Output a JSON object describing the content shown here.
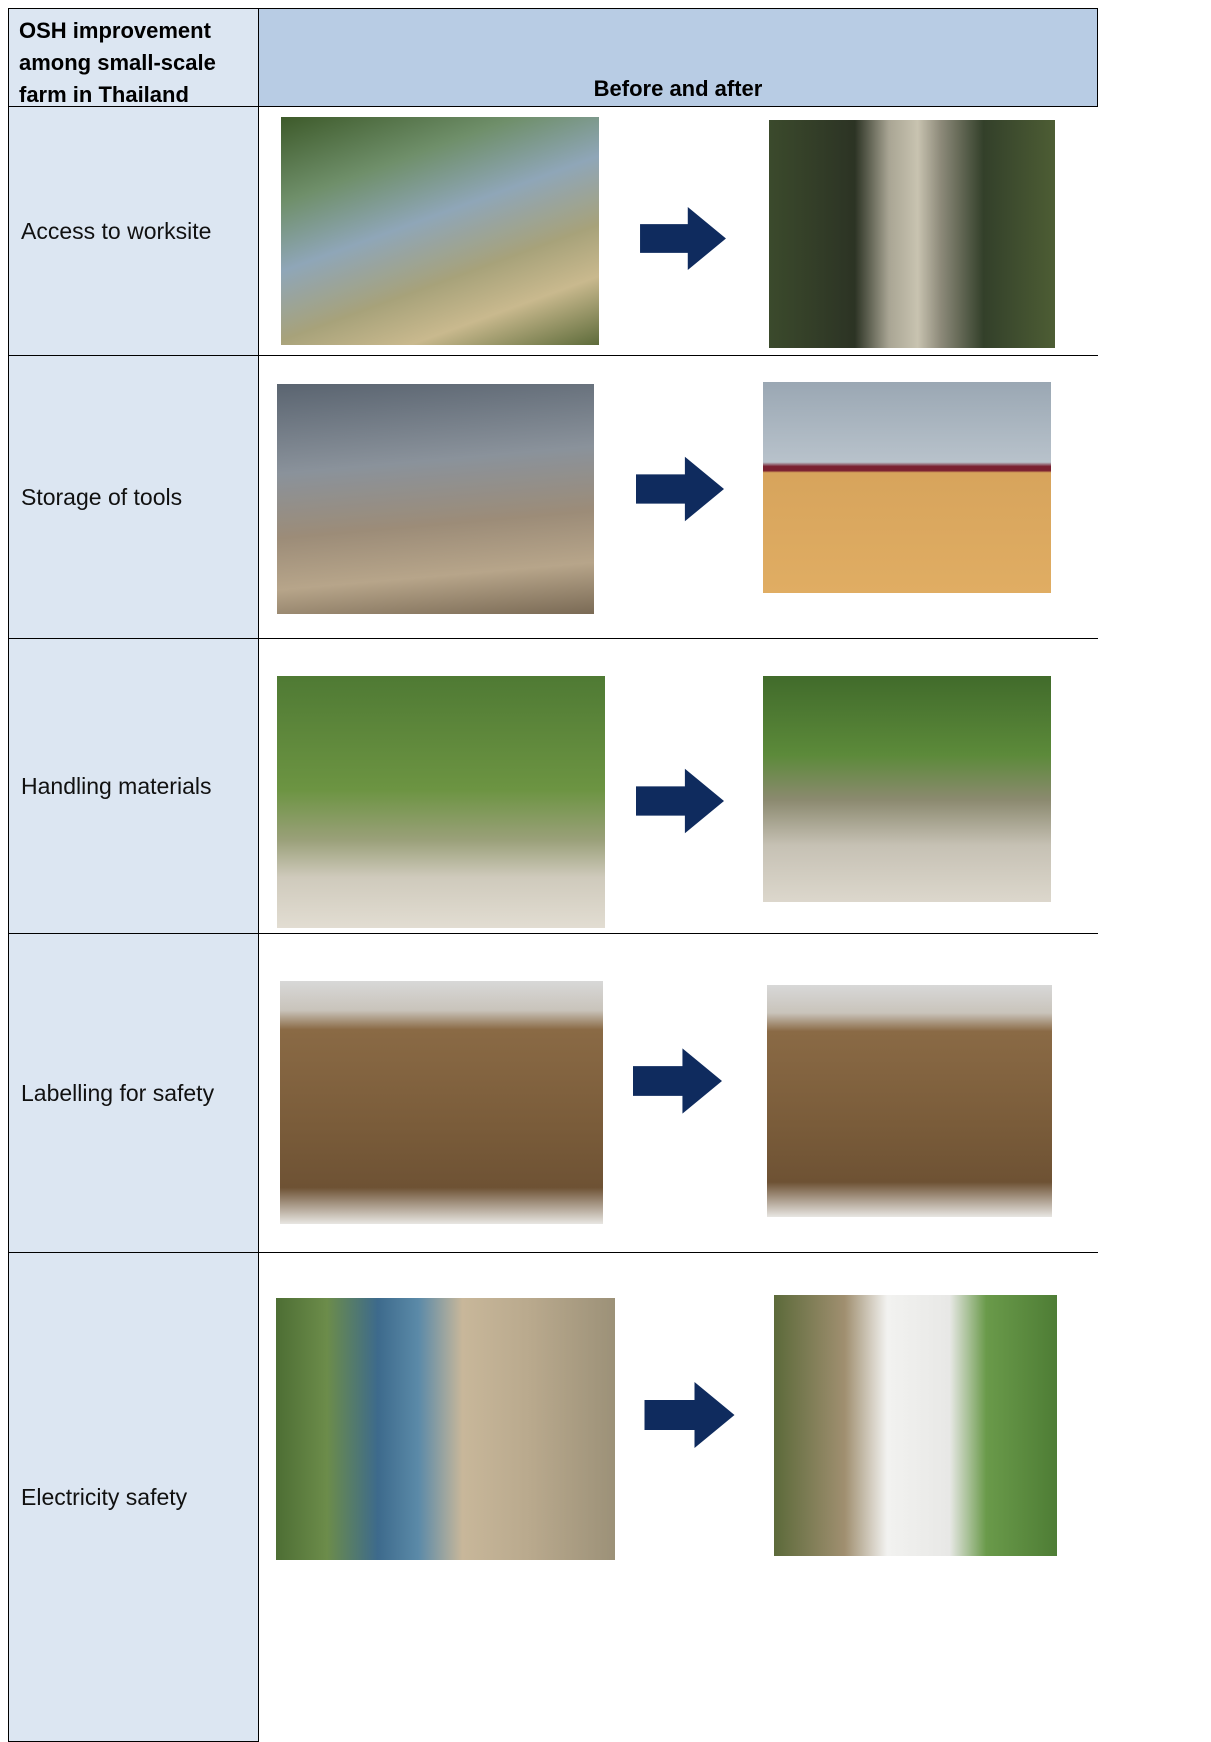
{
  "header": {
    "title": "OSH improvement among small-scale farm in Thailand",
    "column": "Before and after"
  },
  "rows": [
    {
      "label": "Access to worksite"
    },
    {
      "label": "Storage of tools"
    },
    {
      "label": "Handling materials"
    },
    {
      "label": "Labelling for safety"
    },
    {
      "label": "Electricity safety"
    }
  ]
}
